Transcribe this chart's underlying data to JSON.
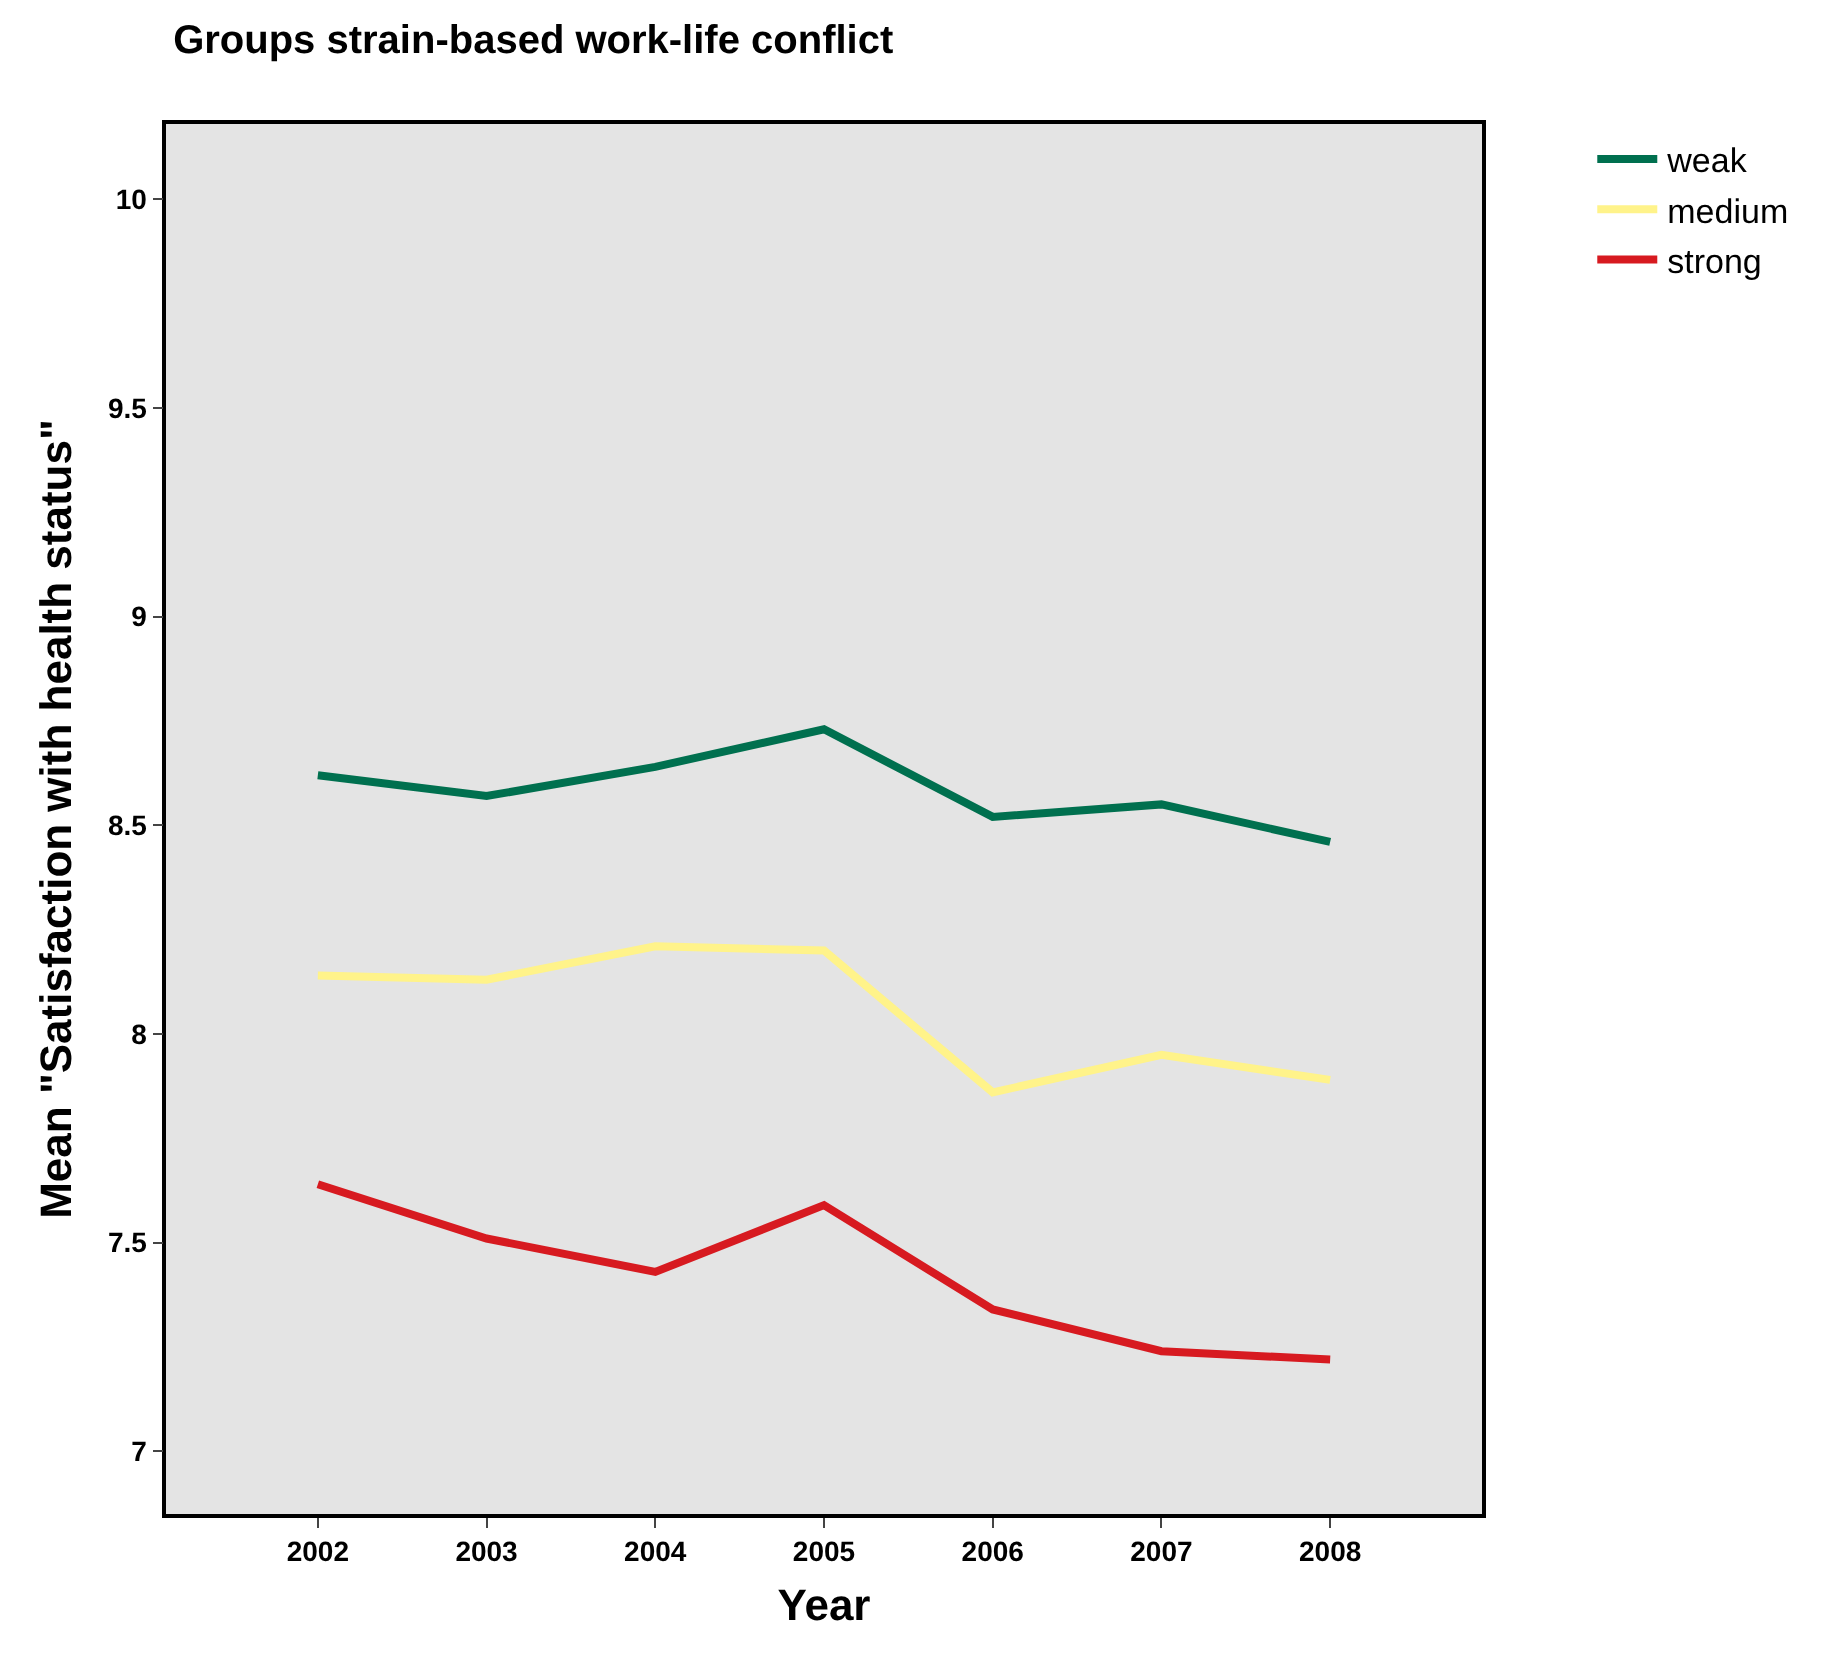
{
  "chart_data": {
    "type": "line",
    "title": "Groups strain-based work-life conflict",
    "xlabel": "Year",
    "ylabel": "Mean \"Satisfaction with health status\"",
    "x": [
      2002,
      2003,
      2004,
      2005,
      2006,
      2007,
      2008
    ],
    "series": [
      {
        "name": "weak",
        "color": "#00704f",
        "values": [
          8.62,
          8.57,
          8.64,
          8.73,
          8.52,
          8.55,
          8.46
        ]
      },
      {
        "name": "medium",
        "color": "#fff38a",
        "values": [
          8.14,
          8.13,
          8.21,
          8.2,
          7.86,
          7.95,
          7.89
        ]
      },
      {
        "name": "strong",
        "color": "#d71a20",
        "values": [
          7.64,
          7.51,
          7.43,
          7.59,
          7.34,
          7.24,
          7.22
        ]
      }
    ],
    "xlim": [
      2001.1,
      2008.9
    ],
    "xticks": [
      2002,
      2003,
      2004,
      2005,
      2006,
      2007,
      2008
    ],
    "ylim": [
      6.85,
      10.18
    ],
    "yticks": [
      7,
      7.5,
      8,
      8.5,
      9,
      9.5,
      10
    ],
    "grid": false,
    "legend": "top right",
    "marker": "none",
    "line_style": "solid"
  }
}
